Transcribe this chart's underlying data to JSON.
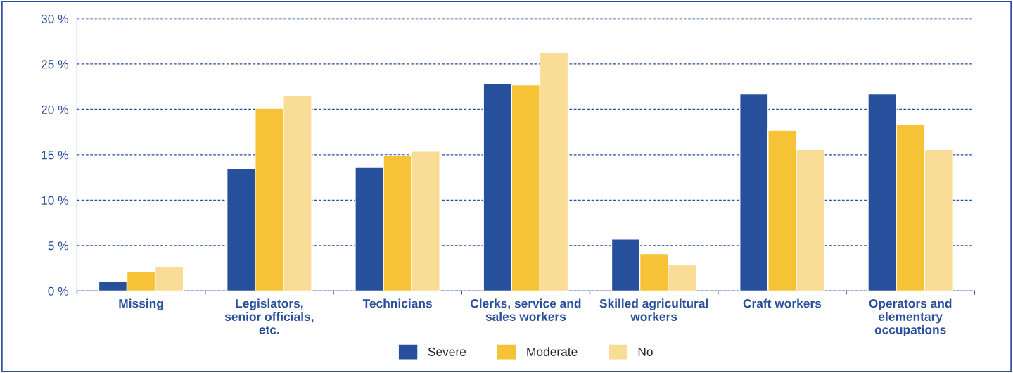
{
  "chart_data": {
    "type": "bar",
    "categories": [
      "Missing",
      "Legislators,\nsenior officials,\netc.",
      "Technicians",
      "Clerks, service and\nsales workers",
      "Skilled agricultural\nworkers",
      "Craft workers",
      "Operators and\nelementary\noccupations"
    ],
    "series": [
      {
        "name": "Severe",
        "color": "#26509b",
        "values": [
          1.1,
          13.5,
          13.6,
          22.8,
          5.7,
          21.7,
          21.7
        ]
      },
      {
        "name": "Moderate",
        "color": "#f5c335",
        "values": [
          2.1,
          20.1,
          14.9,
          22.7,
          4.1,
          17.7,
          18.3
        ]
      },
      {
        "name": "No",
        "color": "#f9dc96",
        "values": [
          2.7,
          21.5,
          15.4,
          26.3,
          2.9,
          15.6,
          15.6
        ]
      }
    ],
    "ylim": [
      0,
      30
    ],
    "yticks": [
      {
        "value": 0,
        "label": "0 %"
      },
      {
        "value": 5,
        "label": "5 %"
      },
      {
        "value": 10,
        "label": "10 %"
      },
      {
        "value": 15,
        "label": "15 %"
      },
      {
        "value": 20,
        "label": "20 %"
      },
      {
        "value": 25,
        "label": "25 %"
      },
      {
        "value": 30,
        "label": "30 %"
      }
    ],
    "grid": "y",
    "legend": "bottom"
  }
}
